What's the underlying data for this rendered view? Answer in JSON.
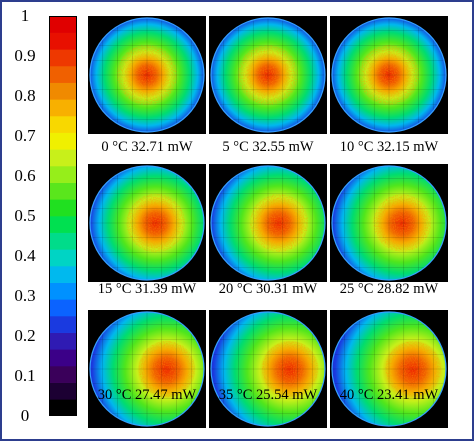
{
  "colorbar": {
    "labels": [
      "1",
      "0.9",
      "0.8",
      "0.7",
      "0.6",
      "0.5",
      "0.4",
      "0.3",
      "0.2",
      "0.1",
      "0"
    ],
    "steps": [
      "#000000",
      "#1c0033",
      "#3a005a",
      "#3b0088",
      "#2f1bb3",
      "#1a3ae0",
      "#0b63ff",
      "#0091ff",
      "#00b9ee",
      "#00d4c4",
      "#00dc8a",
      "#00e050",
      "#20e020",
      "#5ae61c",
      "#96ee1a",
      "#c8f01a",
      "#f0f000",
      "#f8d800",
      "#f8b000",
      "#f08a00",
      "#f06000",
      "#ee3800",
      "#e81000",
      "#e00000"
    ]
  },
  "panels": [
    {
      "caption": "0 °C 32.71 mW",
      "center_offset": 0.0
    },
    {
      "caption": "5 °C 32.55 mW",
      "center_offset": 0.0
    },
    {
      "caption": "10 °C 32.15 mW",
      "center_offset": 0.0
    },
    {
      "caption": "15 °C 31.39 mW",
      "center_offset": 0.2
    },
    {
      "caption": "20 °C 30.31 mW",
      "center_offset": 0.25
    },
    {
      "caption": "25 °C 28.82 mW",
      "center_offset": 0.3
    },
    {
      "caption": "30 °C 27.47 mW",
      "center_offset": 0.45
    },
    {
      "caption": "35 °C 25.54 mW",
      "center_offset": 0.5
    },
    {
      "caption": "40 °C 23.41 mW",
      "center_offset": 0.55
    }
  ]
}
